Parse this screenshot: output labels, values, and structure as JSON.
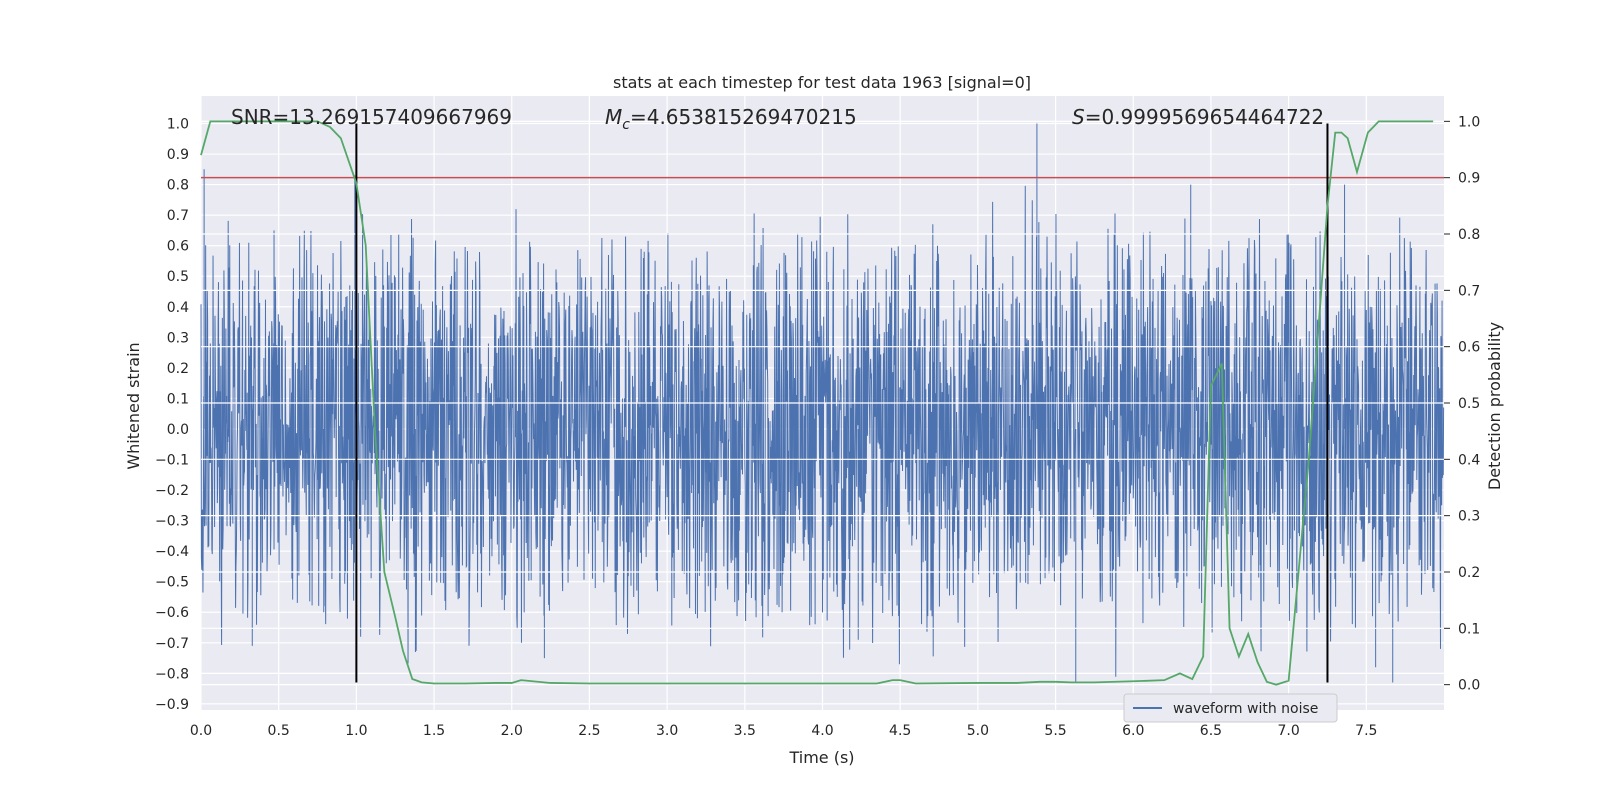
{
  "chart_data": {
    "type": "line",
    "title": "stats at each timestep for test data 1963 [signal=0]",
    "xlabel": "Time (s)",
    "ylabel": "Whitened strain",
    "y2label": "Detection probability",
    "xlim": [
      0.0,
      8.0
    ],
    "ylim": [
      -0.92,
      1.09
    ],
    "y2lim": [
      -0.045,
      1.045
    ],
    "x_ticks": [
      "0.0",
      "0.5",
      "1.0",
      "1.5",
      "2.0",
      "2.5",
      "3.0",
      "3.5",
      "4.0",
      "4.5",
      "5.0",
      "5.5",
      "6.0",
      "6.5",
      "7.0",
      "7.5"
    ],
    "y_ticks": [
      "1.0",
      "0.9",
      "0.8",
      "0.7",
      "0.6",
      "0.5",
      "0.4",
      "0.3",
      "0.2",
      "0.1",
      "0.0",
      "−0.1",
      "−0.2",
      "−0.3",
      "−0.4",
      "−0.5",
      "−0.6",
      "−0.7",
      "−0.8",
      "−0.9"
    ],
    "y2_ticks": [
      "1.0",
      "0.9",
      "0.8",
      "0.7",
      "0.6",
      "0.5",
      "0.4",
      "0.3",
      "0.2",
      "0.1",
      "0.0"
    ],
    "annotations": {
      "snr": "SNR=13.269157409667969",
      "mc_symbol": "M",
      "mc_sub": "c",
      "mc_value": "=4.653815269470215",
      "s_symbol": "S",
      "s_value": "=0.9999569654464722"
    },
    "legend": {
      "entries": [
        "waveform with noise"
      ],
      "location": "lower-right"
    },
    "threshold": {
      "value": 0.9,
      "axis": "y2",
      "color": "#c44e52"
    },
    "vertical_markers": {
      "x": [
        1.0,
        7.25
      ],
      "ymin": -0.83,
      "ymax": 1.0,
      "color": "#000000"
    },
    "series": [
      {
        "name": "waveform with noise",
        "axis": "y",
        "color": "#4c72b0",
        "noise": {
          "duration": 8.0,
          "samples": 3200,
          "body": 0.28,
          "tail_max": 0.65,
          "seed": 1963
        },
        "spikes": [
          {
            "x": 0.02,
            "y": 0.85
          },
          {
            "x": 0.47,
            "y": 0.65
          },
          {
            "x": 0.99,
            "y": 0.83
          },
          {
            "x": 5.38,
            "y": 1.0
          },
          {
            "x": 6.37,
            "y": 0.8
          },
          {
            "x": 7.25,
            "y": 0.72
          },
          {
            "x": 7.36,
            "y": 0.8
          },
          {
            "x": 0.33,
            "y": -0.71
          },
          {
            "x": 1.38,
            "y": -0.73
          },
          {
            "x": 2.21,
            "y": -0.75
          },
          {
            "x": 4.23,
            "y": -0.69
          },
          {
            "x": 5.63,
            "y": -0.83
          },
          {
            "x": 7.67,
            "y": -0.83
          },
          {
            "x": 7.56,
            "y": -0.78
          },
          {
            "x": 0.79,
            "y": -0.6
          }
        ]
      },
      {
        "name": "detection probability",
        "axis": "y2",
        "color": "#55a868",
        "x": [
          0.0,
          0.06,
          0.12,
          0.5,
          0.75,
          0.83,
          0.9,
          0.95,
          1.0,
          1.06,
          1.12,
          1.18,
          1.25,
          1.3,
          1.36,
          1.42,
          1.5,
          1.7,
          1.9,
          2.0,
          2.06,
          2.25,
          2.5,
          3.0,
          3.5,
          4.0,
          4.35,
          4.45,
          4.5,
          4.6,
          5.0,
          5.25,
          5.4,
          5.5,
          5.6,
          5.75,
          6.0,
          6.2,
          6.3,
          6.38,
          6.45,
          6.5,
          6.57,
          6.62,
          6.68,
          6.74,
          6.8,
          6.86,
          6.92,
          7.0,
          7.13,
          7.25,
          7.3,
          7.34,
          7.38,
          7.44,
          7.51,
          7.58,
          7.93
        ],
        "y": [
          0.94,
          1.0,
          1.0,
          1.0,
          1.0,
          0.99,
          0.97,
          0.93,
          0.89,
          0.78,
          0.45,
          0.2,
          0.12,
          0.06,
          0.01,
          0.004,
          0.002,
          0.002,
          0.003,
          0.003,
          0.008,
          0.003,
          0.002,
          0.002,
          0.002,
          0.002,
          0.002,
          0.008,
          0.008,
          0.002,
          0.003,
          0.003,
          0.005,
          0.005,
          0.004,
          0.004,
          0.006,
          0.008,
          0.02,
          0.01,
          0.05,
          0.53,
          0.57,
          0.1,
          0.05,
          0.09,
          0.04,
          0.005,
          0.0,
          0.007,
          0.4,
          0.85,
          0.98,
          0.98,
          0.97,
          0.91,
          0.98,
          1.0,
          1.0
        ]
      }
    ]
  }
}
